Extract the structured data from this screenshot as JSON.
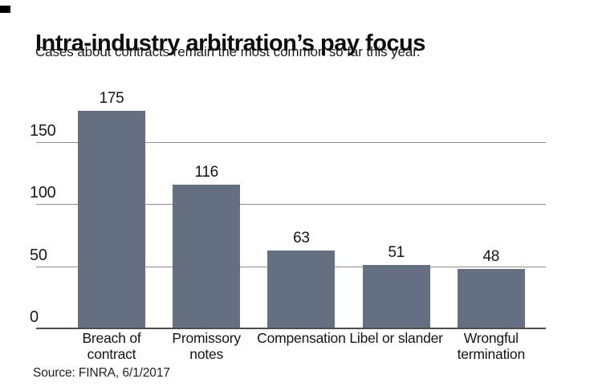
{
  "header": {
    "title": "Intra-industry arbitration’s pay focus",
    "subtitle": "Cases about contracts remain the most common so far this year."
  },
  "source_line": "Source: FINRA, 6/1/2017",
  "corner_tag_color": "#000000",
  "chart_data": {
    "type": "bar",
    "title": "Intra-industry arbitration’s pay focus",
    "subtitle": "Cases about contracts remain the most common so far this year.",
    "categories": [
      "Breach of contract",
      "Promissory notes",
      "Compensation",
      "Libel or slander",
      "Wrongful termination"
    ],
    "values": [
      175,
      116,
      63,
      51,
      48
    ],
    "xlabel": "",
    "ylabel": "",
    "ylim": [
      0,
      185
    ],
    "yticks": [
      0,
      50,
      100,
      150
    ],
    "grid": true,
    "legend": false,
    "bar_color": "#647082",
    "gridline_color": "#8f8f8f",
    "axis_color": "#4d4d4d",
    "source": "Source: FINRA, 6/1/2017"
  }
}
